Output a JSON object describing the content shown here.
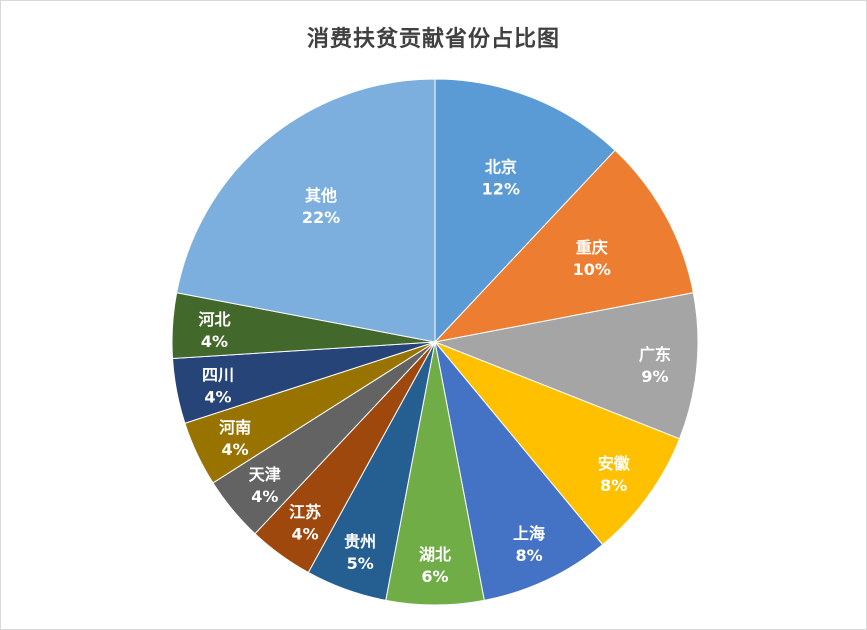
{
  "chart_data": {
    "type": "pie",
    "title": "消费扶贫贡献省份占比图",
    "categories": [
      "北京",
      "重庆",
      "广东",
      "安徽",
      "上海",
      "湖北",
      "贵州",
      "江苏",
      "天津",
      "河南",
      "四川",
      "河北",
      "其他"
    ],
    "values": [
      12,
      10,
      9,
      8,
      8,
      6,
      5,
      4,
      4,
      4,
      4,
      4,
      22
    ],
    "value_labels": [
      "12%",
      "10%",
      "9%",
      "8%",
      "8%",
      "6%",
      "5%",
      "4%",
      "4%",
      "4%",
      "4%",
      "4%",
      "22%"
    ],
    "unit": "%",
    "legend": "none",
    "data_labels": "inside",
    "colors": [
      "#5b9bd5",
      "#ed7d31",
      "#a5a5a5",
      "#ffc000",
      "#4472c4",
      "#70ad47",
      "#255e91",
      "#9e480e",
      "#636363",
      "#997300",
      "#264478",
      "#43682b",
      "#7cafdd"
    ]
  }
}
